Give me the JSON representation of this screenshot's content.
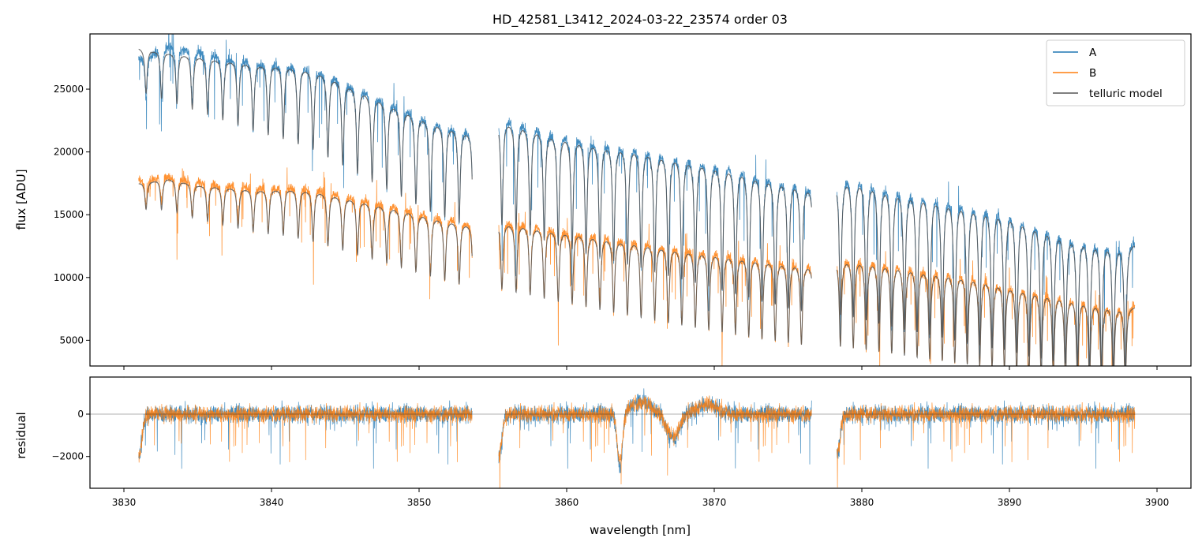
{
  "chart_data": [
    {
      "type": "line",
      "title": "HD_42581_L3412_2024-03-22_23574  order 03",
      "xlabel": "",
      "ylabel": "flux [ADU]",
      "xlim": [
        3827.7,
        3902.3
      ],
      "ylim": [
        2950,
        29400
      ],
      "yticks": [
        5000,
        10000,
        15000,
        20000,
        25000
      ],
      "ytick_labels": [
        "5000",
        "10000",
        "15000",
        "20000",
        "25000"
      ],
      "xticks": [
        3830,
        3840,
        3850,
        3860,
        3870,
        3880,
        3890,
        3900
      ],
      "legend": {
        "placement": "top-right",
        "entries": [
          "A",
          "B",
          "telluric model"
        ]
      },
      "segments": [
        {
          "x_start": 3831.0,
          "x_end": 3853.6
        },
        {
          "x_start": 3855.4,
          "x_end": 3876.6
        },
        {
          "x_start": 3878.3,
          "x_end": 3898.5
        }
      ],
      "series": [
        {
          "name": "A",
          "color": "#1f77b4",
          "x": [
            3831,
            3833,
            3835,
            3837,
            3839,
            3841,
            3843,
            3845,
            3847,
            3849,
            3851,
            3853.5,
            3855.5,
            3857,
            3859,
            3861,
            3863,
            3865,
            3867,
            3869,
            3871,
            3873,
            3875,
            3876.5,
            3878.5,
            3880,
            3882,
            3884,
            3886,
            3888,
            3890,
            3892,
            3894,
            3896,
            3898.3
          ],
          "y": [
            27500,
            28600,
            28200,
            27700,
            27300,
            27200,
            26800,
            25800,
            24700,
            23700,
            22700,
            21900,
            23000,
            22600,
            21900,
            21400,
            20900,
            20700,
            20100,
            19700,
            19300,
            18600,
            18100,
            17700,
            18400,
            18300,
            17600,
            17100,
            16700,
            16200,
            15700,
            14700,
            13800,
            13300,
            12900
          ]
        },
        {
          "name": "B",
          "color": "#ff7f0e",
          "x": [
            3831,
            3833,
            3835,
            3837,
            3839,
            3841,
            3843,
            3845,
            3847,
            3849,
            3851,
            3853.5,
            3855.5,
            3857,
            3859,
            3861,
            3863,
            3865,
            3867,
            3869,
            3871,
            3873,
            3875,
            3876.5,
            3878.5,
            3880,
            3882,
            3884,
            3886,
            3888,
            3890,
            3892,
            3894,
            3896,
            3898.3
          ],
          "y": [
            17800,
            18200,
            17700,
            17500,
            17300,
            17400,
            17200,
            16700,
            16200,
            15700,
            15100,
            14500,
            14700,
            14500,
            14100,
            13800,
            13400,
            13100,
            12700,
            12400,
            12100,
            11800,
            11500,
            11300,
            11800,
            11700,
            11400,
            11000,
            10700,
            10300,
            9700,
            9200,
            8700,
            8200,
            7800
          ]
        },
        {
          "name": "telluric model",
          "color": "#555555",
          "x": [
            3831,
            3833,
            3835,
            3837,
            3839,
            3841,
            3843,
            3845,
            3847,
            3849,
            3851,
            3853.5,
            3855.5,
            3857,
            3859,
            3861,
            3863,
            3865,
            3867,
            3869,
            3871,
            3873,
            3875,
            3876.5,
            3878.5,
            3880,
            3882,
            3884,
            3886,
            3888,
            3890,
            3892,
            3894,
            3896,
            3898.3
          ],
          "y": [
            28300,
            28000,
            27700,
            27400,
            27100,
            27000,
            26600,
            25600,
            24500,
            23500,
            22500,
            21700,
            22700,
            22300,
            21600,
            21100,
            20700,
            20400,
            19900,
            19500,
            19000,
            18400,
            17900,
            17500,
            18100,
            18000,
            17300,
            16900,
            16400,
            15900,
            15400,
            14500,
            13600,
            13100,
            12700
          ]
        }
      ],
      "telluric_lines": {
        "spacing_start_nm": 1.05,
        "spacing_end_nm": 0.8,
        "depth_start": 0.12,
        "depth_end": 0.82
      }
    },
    {
      "type": "line",
      "title": "",
      "xlabel": "wavelength [nm]",
      "ylabel": "residual",
      "xlim": [
        3827.7,
        3902.3
      ],
      "ylim": [
        -3500,
        1750
      ],
      "yticks": [
        -2000,
        0
      ],
      "ytick_labels": [
        "−2000",
        "0"
      ],
      "xticks": [
        3830,
        3840,
        3850,
        3860,
        3870,
        3880,
        3890,
        3900
      ],
      "xtick_labels": [
        "3830",
        "3840",
        "3850",
        "3860",
        "3870",
        "3880",
        "3890",
        "3900"
      ],
      "zero_line": true,
      "series": [
        {
          "name": "A",
          "color": "#1f77b4"
        },
        {
          "name": "B",
          "color": "#ff7f0e"
        }
      ],
      "features": [
        {
          "x": 3863.6,
          "depth": -2600,
          "width": 0.25
        },
        {
          "x": 3867.2,
          "depth": -1200,
          "width": 0.6
        },
        {
          "x": 3865.0,
          "depth": 600,
          "width": 1.0
        },
        {
          "x": 3869.5,
          "depth": 500,
          "width": 1.0
        }
      ]
    }
  ]
}
